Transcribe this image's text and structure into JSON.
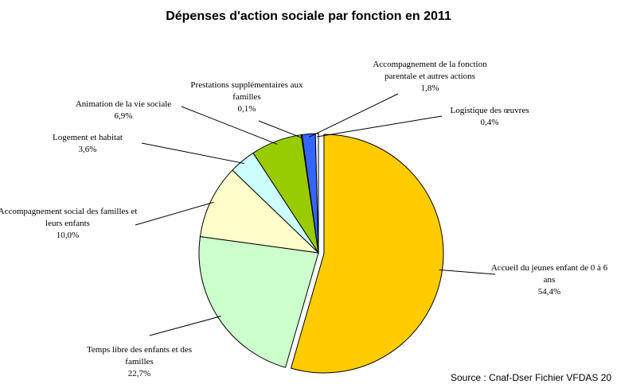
{
  "chart_data": {
    "type": "pie",
    "title": "Dépenses d'action sociale par fonction en 2011",
    "categories": [
      "Accueil du jeunes enfant de 0 à 6 ans",
      "Temps libre des enfants et des familles",
      "Accompagnement social des familles et leurs enfants",
      "Logement et habitat",
      "Animation de la vie sociale",
      "Prestations supplémentaires aux familles",
      "Accompagnement de la fonction parentale et autres actions",
      "Logistique des œuvres"
    ],
    "values": [
      54.4,
      22.7,
      10.0,
      3.6,
      6.9,
      0.1,
      1.8,
      0.4
    ],
    "value_labels": [
      "54,4%",
      "22,7%",
      "10,0%",
      "3,6%",
      "6,9%",
      "0,1%",
      "1,8%",
      "0,4%"
    ],
    "colors": [
      "#ffcc00",
      "#ccffcc",
      "#ffffcc",
      "#ccffff",
      "#99cc00",
      "#c0c0c0",
      "#3366ff",
      "#ffffff"
    ],
    "source": "Source : Cnaf-Dser Fichier VFDAS 20"
  }
}
